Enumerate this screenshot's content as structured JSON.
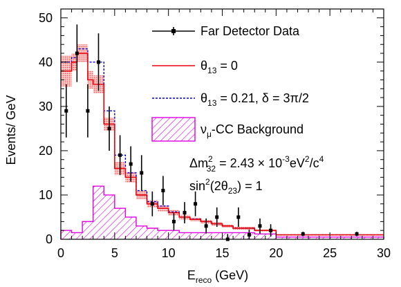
{
  "chart_data": {
    "type": "histogram",
    "title": "",
    "xlabel": {
      "base": "E",
      "sub": "reco",
      "rest": " (GeV)"
    },
    "ylabel": "Events/ GeV",
    "xlim": [
      0,
      30
    ],
    "ylim": [
      0,
      52
    ],
    "x_ticks": [
      0,
      5,
      10,
      15,
      20,
      25,
      30
    ],
    "x_tick_labels": [
      "0",
      "5",
      "10",
      "15",
      "20",
      "25",
      "30"
    ],
    "y_ticks": [
      0,
      10,
      20,
      30,
      40,
      50
    ],
    "y_tick_labels": [
      "0",
      "10",
      "20",
      "30",
      "40",
      "50"
    ],
    "grid": false,
    "legend_position": "top-right",
    "legend": [
      {
        "key": "data",
        "label": "Far Detector Data"
      },
      {
        "key": "theta0",
        "greek": "θ",
        "sub": "13",
        "rest": " = 0"
      },
      {
        "key": "theta21",
        "greek": "θ",
        "sub": "13",
        "rest": " = 0.21, δ = 3π/2"
      },
      {
        "key": "bkg",
        "greek": "ν",
        "sub": "μ",
        "rest": "-CC Background"
      }
    ],
    "annotations": {
      "dm2": {
        "pre": "Δm",
        "sup1": "2",
        "sub1": "32",
        "mid": " = 2.43 × 10",
        "sup2": "-3",
        "mid2": "eV",
        "sup3": "2",
        "mid3": "/c",
        "sup4": "4"
      },
      "sin2": {
        "pre": "sin",
        "sup1": "2",
        "mid": "(2θ",
        "sub1": "23",
        "post": ") = 1"
      }
    },
    "bin_edges": [
      0,
      0.5,
      1,
      1.5,
      2,
      2.5,
      3,
      3.5,
      4,
      4.5,
      5,
      5.5,
      6,
      6.5,
      7,
      7.5,
      8,
      9,
      10,
      11,
      12,
      13,
      14,
      15,
      16,
      17,
      18,
      19,
      20,
      25,
      30
    ],
    "series": [
      {
        "name": "θ13 = 0",
        "color": "#e8000b",
        "band_color": "#ff8a8a",
        "values": [
          38,
          38,
          40,
          42,
          42,
          36,
          35,
          35,
          26,
          26,
          16,
          16,
          14,
          14,
          10,
          10,
          8,
          7,
          6,
          5,
          4.5,
          4,
          3.5,
          3,
          2.5,
          2.5,
          2,
          2,
          1,
          1
        ],
        "band": [
          3.5,
          3.5,
          2,
          2,
          2,
          2,
          2,
          2,
          1.5,
          1.5,
          1.5,
          1.5,
          1.2,
          1.2,
          1,
          1,
          0.8,
          0.7,
          0.6,
          0.5,
          0.4,
          0.4,
          0.4,
          0.3,
          0.3,
          0.3,
          0.2,
          0.2,
          0.1,
          0.1
        ]
      },
      {
        "name": "θ13 = 0.21, δ = 3π/2",
        "color": "#0000cc",
        "values": [
          40,
          40,
          41,
          43,
          43,
          40,
          40,
          40,
          29,
          29,
          19,
          19,
          15,
          15,
          11,
          11,
          8.5,
          7.5,
          6.2,
          5,
          4.6,
          4,
          3.5,
          3,
          2.5,
          2.5,
          2,
          2,
          1,
          1
        ]
      },
      {
        "name": "νμ-CC Background",
        "color": "#e000e0",
        "values": [
          2,
          2,
          1.5,
          1.5,
          4,
          4,
          12,
          12,
          10,
          10,
          7,
          7,
          5,
          5,
          3,
          3,
          2.5,
          2,
          2,
          1.5,
          1.5,
          1.5,
          1.5,
          1.5,
          1.5,
          1.5,
          1.2,
          1.2,
          0.5,
          0.5
        ]
      }
    ],
    "data_points": {
      "name": "Far Detector Data",
      "color": "#000000",
      "points": [
        {
          "x": 0.5,
          "y": 29,
          "err": 6
        },
        {
          "x": 1.5,
          "y": 42,
          "err": 6.5
        },
        {
          "x": 2.5,
          "y": 29,
          "err": 6
        },
        {
          "x": 3.5,
          "y": 40,
          "err": 6.5
        },
        {
          "x": 4.5,
          "y": 25,
          "err": 5
        },
        {
          "x": 5.5,
          "y": 19,
          "err": 4.5
        },
        {
          "x": 6.5,
          "y": 17,
          "err": 4
        },
        {
          "x": 7.5,
          "y": 15,
          "err": 4
        },
        {
          "x": 8.5,
          "y": 8,
          "err": 2.8
        },
        {
          "x": 9.5,
          "y": 11,
          "err": 3.3
        },
        {
          "x": 10.5,
          "y": 4,
          "err": 2
        },
        {
          "x": 11.5,
          "y": 6,
          "err": 2.4
        },
        {
          "x": 12.5,
          "y": 8,
          "err": 2.8
        },
        {
          "x": 13.5,
          "y": 3,
          "err": 1.7
        },
        {
          "x": 14.5,
          "y": 5,
          "err": 2.2
        },
        {
          "x": 15.5,
          "y": 0,
          "err": 1.2
        },
        {
          "x": 16.5,
          "y": 5,
          "err": 2.2
        },
        {
          "x": 17.5,
          "y": 1,
          "err": 1.2
        },
        {
          "x": 18.5,
          "y": 3,
          "err": 1.7
        },
        {
          "x": 19.5,
          "y": 2,
          "err": 1.4
        },
        {
          "x": 22.5,
          "y": 1.2,
          "err": 0.5
        },
        {
          "x": 27.5,
          "y": 1.2,
          "err": 0.5
        }
      ]
    }
  }
}
